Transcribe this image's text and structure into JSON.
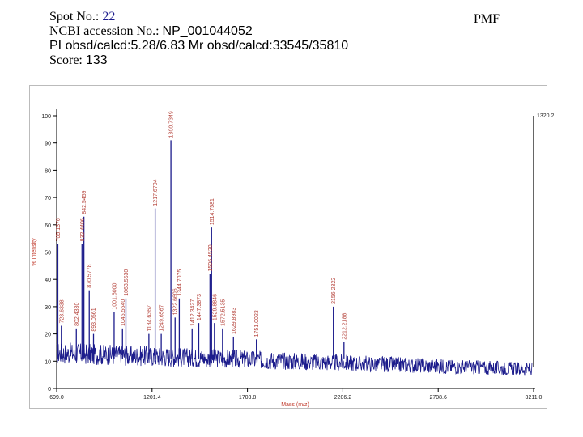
{
  "header": {
    "spot_label": "Spot No.:",
    "spot_value": "22",
    "ncbi_label": "NCBI accession No.:",
    "ncbi_value": "NP_001044052",
    "pi_line": "PI obsd/calcd:5.28/6.83 Mr obsd/calcd:33545/35810",
    "score_label": "Score:",
    "score_value": "133",
    "method": "PMF"
  },
  "colors": {
    "trace": "#1c1c8c",
    "peak_label": "#b5443c",
    "axis": "#000000",
    "axis_title": "#c0392b"
  },
  "chart_data": {
    "type": "line",
    "title": "",
    "xlabel": "Mass (m/z)",
    "ylabel": "% Intensity",
    "xlim": [
      699.0,
      3211.0
    ],
    "ylim": [
      0,
      100
    ],
    "x_ticks": [
      699.0,
      1201.4,
      1703.8,
      2206.2,
      2708.6,
      3211.0
    ],
    "x_tick_labels": [
      "699.0",
      "1201.4",
      "1703.8",
      "2206.2",
      "2708.6",
      "3211.0"
    ],
    "y_ticks": [
      0,
      10,
      20,
      30,
      40,
      50,
      60,
      70,
      80,
      90,
      100
    ],
    "y_tick_labels": [
      "0",
      "10",
      "20",
      "30",
      "40",
      "50",
      "60",
      "70",
      "80",
      "90",
      "100"
    ],
    "max_intensity_label": "1320.2",
    "grid": false,
    "legend": "none",
    "baseline_intensity": 13,
    "peaks": [
      {
        "mz": 705.1376,
        "label": "705.1376",
        "intensity": 53
      },
      {
        "mz": 723.6338,
        "label": "723.6338",
        "intensity": 23
      },
      {
        "mz": 802.433,
        "label": "802.4330",
        "intensity": 22
      },
      {
        "mz": 832.4406,
        "label": "832.4406",
        "intensity": 53
      },
      {
        "mz": 842.5459,
        "label": "842.5459",
        "intensity": 63
      },
      {
        "mz": 870.5778,
        "label": "870.5778",
        "intensity": 36
      },
      {
        "mz": 893.0561,
        "label": "893.0561",
        "intensity": 20
      },
      {
        "mz": 1001.6,
        "label": "1001.6000",
        "intensity": 28
      },
      {
        "mz": 1045.564,
        "label": "1045.5640",
        "intensity": 22
      },
      {
        "mz": 1063.553,
        "label": "1063.5530",
        "intensity": 33
      },
      {
        "mz": 1184.6367,
        "label": "1184.6367",
        "intensity": 20
      },
      {
        "mz": 1217.6704,
        "label": "1217.6704",
        "intensity": 66
      },
      {
        "mz": 1249.6567,
        "label": "1249.6567",
        "intensity": 20
      },
      {
        "mz": 1300.7349,
        "label": "1300.7349",
        "intensity": 91
      },
      {
        "mz": 1322.6606,
        "label": "1322.6606",
        "intensity": 26
      },
      {
        "mz": 1344.7075,
        "label": "1344.7075",
        "intensity": 33
      },
      {
        "mz": 1412.3427,
        "label": "1412.3427",
        "intensity": 22
      },
      {
        "mz": 1447.3873,
        "label": "1447.3873",
        "intensity": 24
      },
      {
        "mz": 1506.452,
        "label": "1506.4520",
        "intensity": 42
      },
      {
        "mz": 1514.7581,
        "label": "1514.7581",
        "intensity": 59
      },
      {
        "mz": 1529.8846,
        "label": "1529.8846",
        "intensity": 24
      },
      {
        "mz": 1572.5135,
        "label": "1572.5135",
        "intensity": 22
      },
      {
        "mz": 1629.8983,
        "label": "1629.8983",
        "intensity": 19
      },
      {
        "mz": 1751.0023,
        "label": "1751.0023",
        "intensity": 18
      },
      {
        "mz": 2156.2322,
        "label": "2156.2322",
        "intensity": 30
      },
      {
        "mz": 2212.2188,
        "label": "2212.2188",
        "intensity": 17
      },
      {
        "mz": 3211.0,
        "label": "",
        "intensity": 100
      }
    ]
  }
}
